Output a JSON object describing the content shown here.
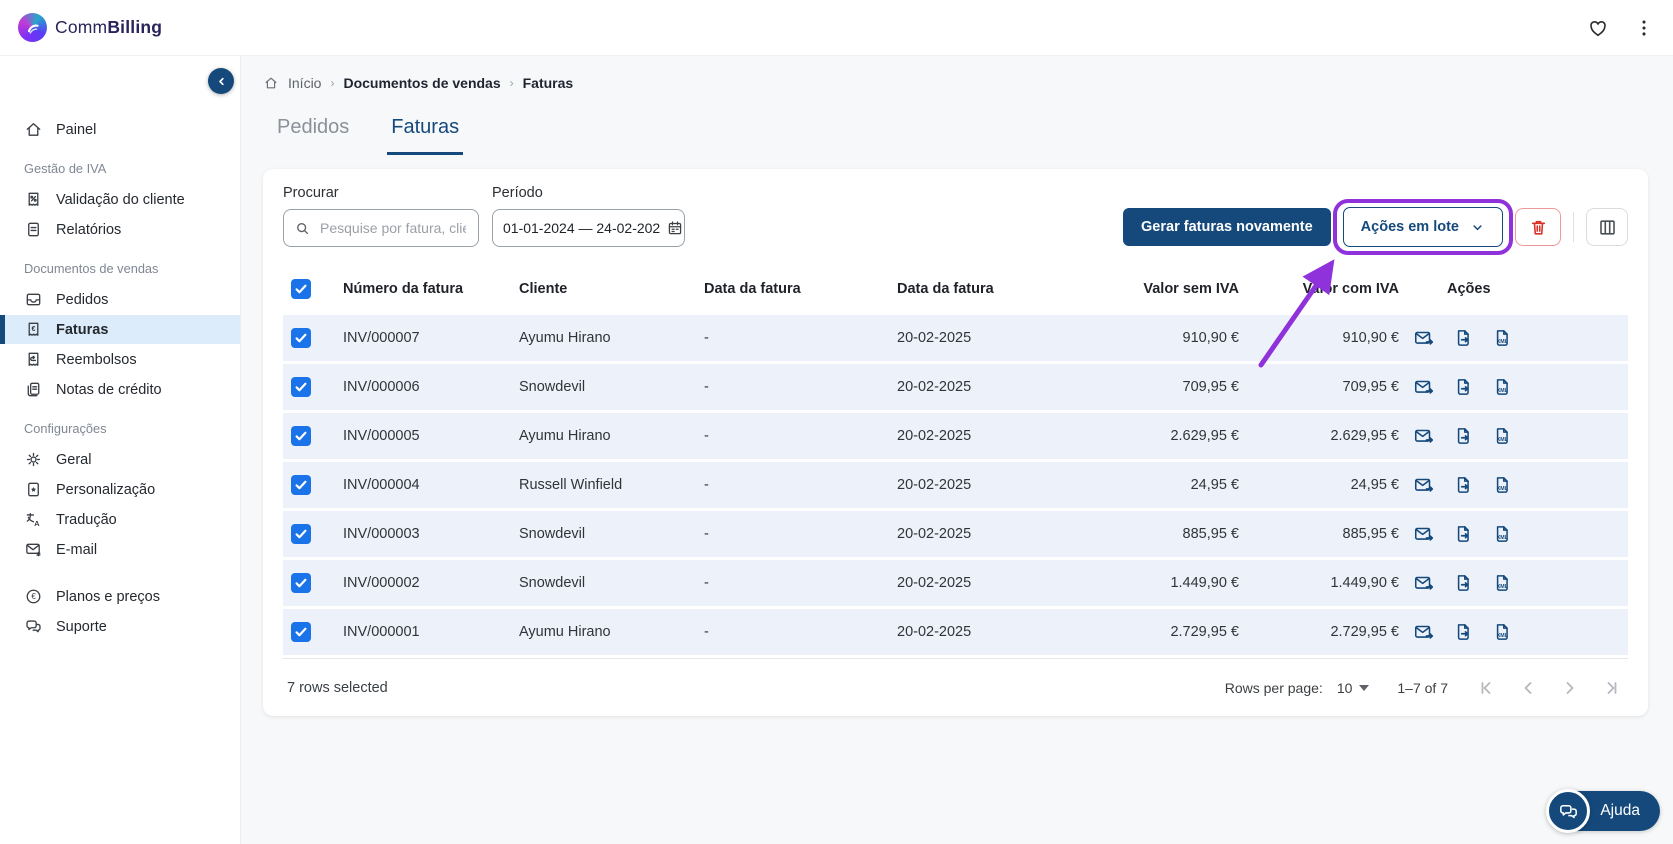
{
  "brand": {
    "prefix": "Comm",
    "suffix": "Billing"
  },
  "sidebar": {
    "groups": [
      {
        "title": "",
        "items": [
          {
            "icon": "home",
            "label": "Painel"
          }
        ]
      },
      {
        "title": "Gestão de IVA",
        "items": [
          {
            "icon": "receipt-percent",
            "label": "Validação do cliente"
          },
          {
            "icon": "document",
            "label": "Relatórios"
          }
        ]
      },
      {
        "title": "Documentos de vendas",
        "items": [
          {
            "icon": "inbox",
            "label": "Pedidos"
          },
          {
            "icon": "receipt-euro",
            "label": "Faturas",
            "active": true
          },
          {
            "icon": "receipt-refund",
            "label": "Reembolsos"
          },
          {
            "icon": "credit-note",
            "label": "Notas de crédito"
          }
        ]
      },
      {
        "title": "Configurações",
        "items": [
          {
            "icon": "gear",
            "label": "Geral"
          },
          {
            "icon": "doc-star",
            "label": "Personalização"
          },
          {
            "icon": "translate",
            "label": "Tradução"
          },
          {
            "icon": "mail-gear",
            "label": "E-mail"
          }
        ]
      },
      {
        "title": "",
        "items": [
          {
            "icon": "euro-circle",
            "label": "Planos e preços"
          },
          {
            "icon": "chat",
            "label": "Suporte"
          }
        ]
      }
    ]
  },
  "breadcrumb": {
    "items": [
      "Início",
      "Documentos de vendas",
      "Faturas"
    ]
  },
  "tabs": [
    {
      "label": "Pedidos",
      "active": false
    },
    {
      "label": "Faturas",
      "active": true
    }
  ],
  "filters": {
    "search_label": "Procurar",
    "search_placeholder": "Pesquise por fatura, cliente",
    "period_label": "Período",
    "period_value": "01-01-2024 — 24-02-202"
  },
  "toolbar": {
    "regenerate_label": "Gerar faturas novamente",
    "bulk_actions_label": "Ações em lote"
  },
  "table": {
    "columns": [
      "Número da fatura",
      "Cliente",
      "Data da fatura",
      "Data da fatura",
      "Valor sem IVA",
      "Valor com IVA",
      "Ações"
    ],
    "rows": [
      {
        "number": "INV/000007",
        "client": "Ayumu Hirano",
        "invoice_date": "-",
        "invoice_date_2": "20-02-2025",
        "value_without_vat": "910,90 €",
        "value_with_vat": "910,90 €",
        "checked": true
      },
      {
        "number": "INV/000006",
        "client": "Snowdevil",
        "invoice_date": "-",
        "invoice_date_2": "20-02-2025",
        "value_without_vat": "709,95 €",
        "value_with_vat": "709,95 €",
        "checked": true
      },
      {
        "number": "INV/000005",
        "client": "Ayumu Hirano",
        "invoice_date": "-",
        "invoice_date_2": "20-02-2025",
        "value_without_vat": "2.629,95 €",
        "value_with_vat": "2.629,95 €",
        "checked": true
      },
      {
        "number": "INV/000004",
        "client": "Russell Winfield",
        "invoice_date": "-",
        "invoice_date_2": "20-02-2025",
        "value_without_vat": "24,95 €",
        "value_with_vat": "24,95 €",
        "checked": true
      },
      {
        "number": "INV/000003",
        "client": "Snowdevil",
        "invoice_date": "-",
        "invoice_date_2": "20-02-2025",
        "value_without_vat": "885,95 €",
        "value_with_vat": "885,95 €",
        "checked": true
      },
      {
        "number": "INV/000002",
        "client": "Snowdevil",
        "invoice_date": "-",
        "invoice_date_2": "20-02-2025",
        "value_without_vat": "1.449,90 €",
        "value_with_vat": "1.449,90 €",
        "checked": true
      },
      {
        "number": "INV/000001",
        "client": "Ayumu Hirano",
        "invoice_date": "-",
        "invoice_date_2": "20-02-2025",
        "value_without_vat": "2.729,95 €",
        "value_with_vat": "2.729,95 €",
        "checked": true
      }
    ],
    "row_actions": [
      {
        "icon": "mail-send",
        "name": "send-invoice-email"
      },
      {
        "icon": "file-export",
        "name": "export-invoice"
      },
      {
        "icon": "file-xml",
        "name": "download-invoice-xml"
      }
    ]
  },
  "footer": {
    "selected_text": "7 rows selected",
    "rows_per_page_label": "Rows per page:",
    "rows_per_page_value": "10",
    "range_text": "1–7 of 7"
  },
  "help": {
    "label": "Ajuda"
  },
  "colors": {
    "primary": "#15497c",
    "annotation": "#9032dc",
    "danger": "#d93025",
    "checkbox": "#1a73e8",
    "selected_row": "#edf2fa"
  }
}
